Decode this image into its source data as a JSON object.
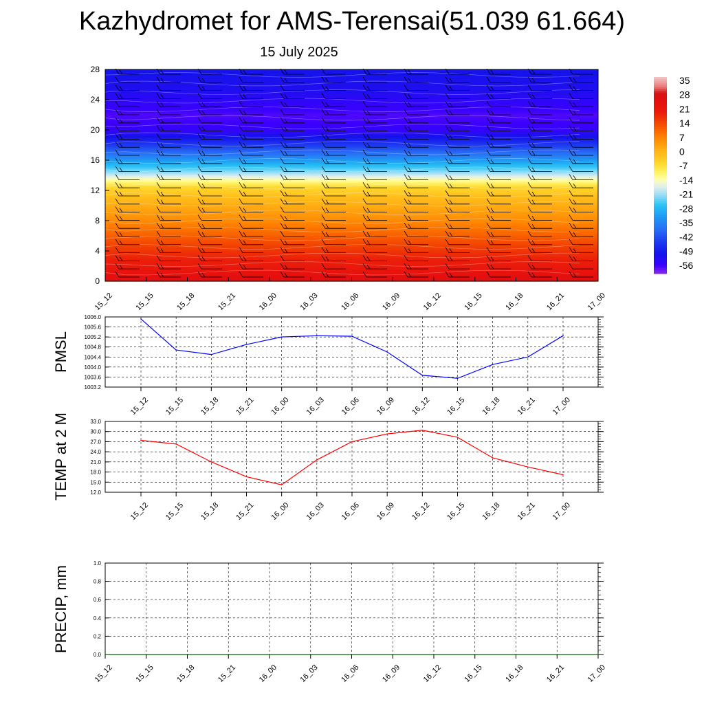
{
  "title": "Kazhydromet for AMS-Terensai(51.039 61.664)",
  "subtitle": "15 July 2025",
  "chart_data": [
    {
      "type": "heatmap",
      "x_tick_labels": [
        "15_12",
        "15_15",
        "15_18",
        "15_21",
        "16_00",
        "16_03",
        "16_06",
        "16_09",
        "16_12",
        "16_15",
        "16_18",
        "16_21",
        "17_00"
      ],
      "ylim": [
        0,
        28
      ],
      "y_ticks": [
        0,
        4,
        8,
        12,
        16,
        20,
        24,
        28
      ],
      "colorbar_labels": [
        "35",
        "28",
        "21",
        "14",
        "7",
        "0",
        "-7",
        "-14",
        "-21",
        "-28",
        "-35",
        "-42",
        "-49",
        "-56"
      ],
      "colorbar_range": [
        -60,
        38
      ],
      "profile": [
        {
          "h": 0,
          "v": 28
        },
        {
          "h": 2,
          "v": 22
        },
        {
          "h": 5,
          "v": 15
        },
        {
          "h": 8,
          "v": 7
        },
        {
          "h": 11,
          "v": 0
        },
        {
          "h": 12.5,
          "v": -5
        },
        {
          "h": 13.3,
          "v": -12
        },
        {
          "h": 14.3,
          "v": -20
        },
        {
          "h": 15.5,
          "v": -28
        },
        {
          "h": 17,
          "v": -38
        },
        {
          "h": 18.5,
          "v": -47
        },
        {
          "h": 20,
          "v": -55
        },
        {
          "h": 22,
          "v": -57
        },
        {
          "h": 25,
          "v": -52
        },
        {
          "h": 28,
          "v": -50
        }
      ],
      "grid": false
    },
    {
      "type": "line",
      "ylabel": "PMSL",
      "x_tick_labels": [
        "15_12",
        "15_15",
        "15_18",
        "15_21",
        "16_00",
        "16_03",
        "16_06",
        "16_09",
        "16_12",
        "16_15",
        "16_18",
        "16_21",
        "17_00"
      ],
      "y_tick_labels": [
        "1003.2",
        "1003.6",
        "1004.0",
        "1004.4",
        "1004.8",
        "1005.2",
        "1005.6",
        "1006.0"
      ],
      "ylim": [
        1003.2,
        1006.0
      ],
      "series": [
        {
          "color": "#0000ff",
          "values": [
            1005.92,
            1004.68,
            1004.5,
            1004.9,
            1005.2,
            1005.25,
            1005.23,
            1004.6,
            1003.67,
            1003.55,
            1004.1,
            1004.4,
            1005.25
          ]
        }
      ],
      "grid": true
    },
    {
      "type": "line",
      "ylabel": "TEMP at 2 M",
      "x_tick_labels": [
        "15_12",
        "15_15",
        "15_18",
        "15_21",
        "16_00",
        "16_03",
        "16_06",
        "16_09",
        "16_12",
        "16_15",
        "16_18",
        "16_21",
        "17_00"
      ],
      "y_tick_labels": [
        "12.0",
        "15.0",
        "18.0",
        "21.0",
        "24.0",
        "27.0",
        "30.0",
        "33.0"
      ],
      "ylim": [
        12,
        33
      ],
      "series": [
        {
          "color": "#ff0000",
          "values": [
            27.4,
            26.3,
            21.0,
            16.6,
            14.2,
            21.6,
            27.0,
            29.3,
            30.4,
            28.3,
            22.2,
            19.5,
            17.2
          ]
        }
      ],
      "grid": true
    },
    {
      "type": "line",
      "ylabel": "PRECIP, mm",
      "x_tick_labels": [
        "15_12",
        "15_15",
        "15_18",
        "15_21",
        "16_00",
        "16_03",
        "16_06",
        "16_09",
        "16_12",
        "16_15",
        "16_18",
        "16_21",
        "17_00"
      ],
      "y_tick_labels": [
        "0.0",
        "0.2",
        "0.4",
        "0.6",
        "0.8",
        "1.0"
      ],
      "ylim": [
        0,
        1
      ],
      "series": [
        {
          "color": "#006400",
          "values": [
            0,
            0,
            0,
            0,
            0,
            0,
            0,
            0,
            0,
            0,
            0,
            0,
            0
          ]
        }
      ],
      "grid": true
    }
  ]
}
